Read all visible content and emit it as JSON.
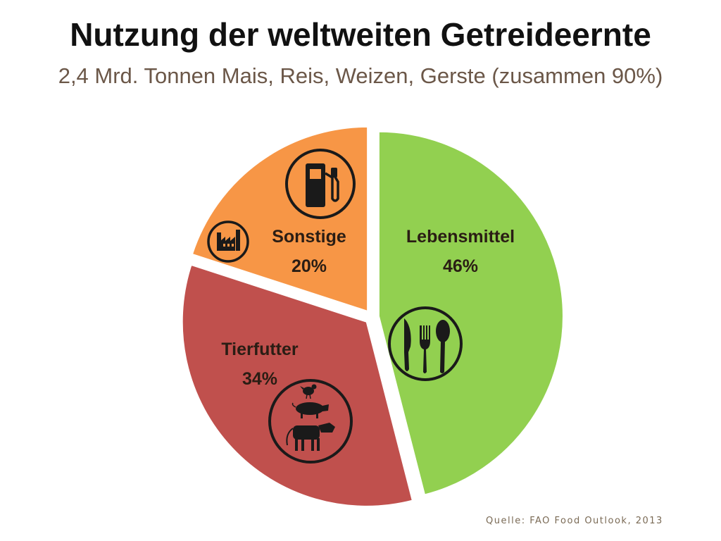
{
  "title": "Nutzung der weltweiten Getreideernte",
  "subtitle": "2,4 Mrd. Tonnen Mais, Reis, Weizen, Gerste (zusammen 90%)",
  "source": "Quelle: FAO Food Outlook, 2013",
  "chart_data": {
    "type": "pie",
    "title": "Nutzung der weltweiten Getreideernte",
    "subtitle": "2,4 Mrd. Tonnen Mais, Reis, Weizen, Gerste (zusammen 90%)",
    "slices": [
      {
        "label": "Lebensmittel",
        "value": 46,
        "value_label": "46%",
        "color": "#92d050",
        "icon": "cutlery-icon"
      },
      {
        "label": "Tierfutter",
        "value": 34,
        "value_label": "34%",
        "color": "#c0504d",
        "icon": "livestock-icon"
      },
      {
        "label": "Sonstige",
        "value": 20,
        "value_label": "20%",
        "color": "#f79646",
        "icons": [
          "fuel-pump-icon",
          "factory-icon"
        ]
      }
    ],
    "exploded": true,
    "legend": "none"
  }
}
